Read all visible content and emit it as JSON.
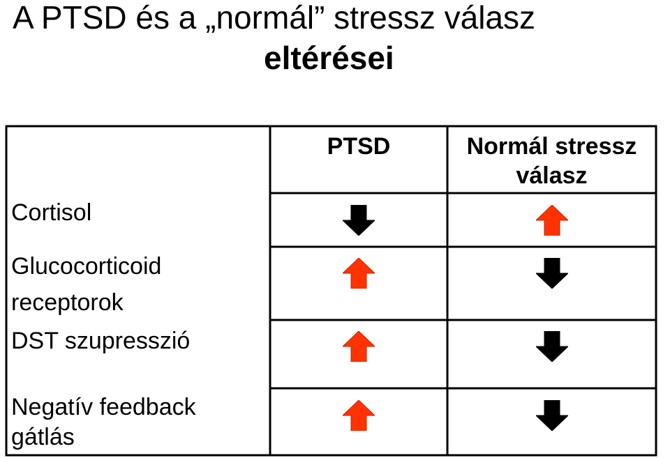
{
  "title": {
    "part1": "A PTSD és a ",
    "quote_open": "„",
    "quoted": "normál",
    "quote_close": "”",
    "part2": " stressz válasz",
    "line2": "eltérései"
  },
  "table": {
    "headers": {
      "col1": "PTSD",
      "col2_line1": "Normál stressz",
      "col2_line2": "válasz"
    },
    "rows": [
      {
        "label_line1": "Cortisol",
        "label_line2": "",
        "ptsd": "down",
        "normal": "up"
      },
      {
        "label_line1": "Glucocorticoid",
        "label_line2": "receptorok",
        "ptsd": "up",
        "normal": "down"
      },
      {
        "label_line1": "DST szupresszió",
        "label_line2": "",
        "ptsd": "up",
        "normal": "down"
      },
      {
        "label_line1": "Negatív feedback",
        "label_line2": "gátlás",
        "ptsd": "up",
        "normal": "down"
      }
    ]
  },
  "colors": {
    "up_arrow": "#ff3300",
    "down_arrow": "#000000",
    "border": "#000000"
  },
  "icons": {
    "up": "arrow-up-icon",
    "down": "arrow-down-icon"
  }
}
